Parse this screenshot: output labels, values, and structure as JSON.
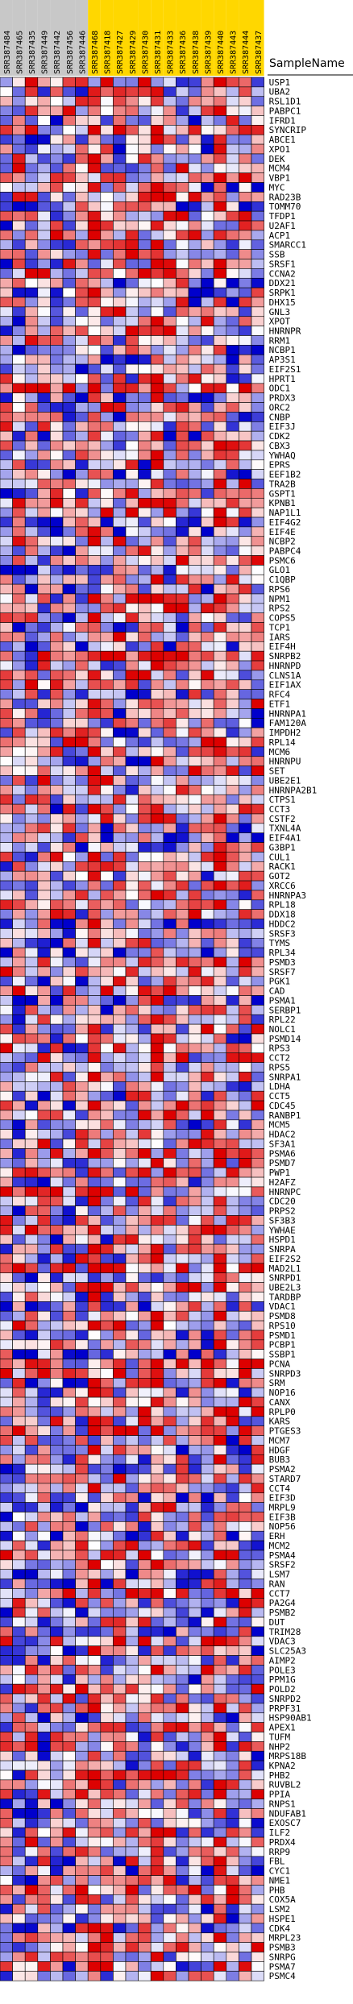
{
  "chart_data": {
    "type": "heatmap",
    "header_label": "SampleName",
    "columns": [
      {
        "id": "SRR387484",
        "group": "control"
      },
      {
        "id": "SRR387465",
        "group": "control"
      },
      {
        "id": "SRR387435",
        "group": "control"
      },
      {
        "id": "SRR387449",
        "group": "control"
      },
      {
        "id": "SRR387442",
        "group": "control"
      },
      {
        "id": "SRR387456",
        "group": "control"
      },
      {
        "id": "SRR387446",
        "group": "control"
      },
      {
        "id": "SRR387468",
        "group": "treated"
      },
      {
        "id": "SRR387418",
        "group": "treated"
      },
      {
        "id": "SRR387427",
        "group": "treated"
      },
      {
        "id": "SRR387429",
        "group": "treated"
      },
      {
        "id": "SRR387430",
        "group": "treated"
      },
      {
        "id": "SRR387431",
        "group": "treated"
      },
      {
        "id": "SRR387433",
        "group": "treated"
      },
      {
        "id": "SRR387436",
        "group": "treated"
      },
      {
        "id": "SRR387438",
        "group": "treated"
      },
      {
        "id": "SRR387439",
        "group": "treated"
      },
      {
        "id": "SRR387440",
        "group": "treated"
      },
      {
        "id": "SRR387443",
        "group": "treated"
      },
      {
        "id": "SRR387444",
        "group": "treated"
      },
      {
        "id": "SRR387437",
        "group": "treated"
      }
    ],
    "rows": [
      "USP1",
      "UBA2",
      "RSL1D1",
      "PABPC1",
      "IFRD1",
      "SYNCRIP",
      "ABCE1",
      "XPO1",
      "DEK",
      "MCM4",
      "VBP1",
      "MYC",
      "RAD23B",
      "TOMM70",
      "TFDP1",
      "U2AF1",
      "ACP1",
      "SMARCC1",
      "SSB",
      "SRSF1",
      "CCNA2",
      "DDX21",
      "SRPK1",
      "DHX15",
      "GNL3",
      "XPOT",
      "HNRNPR",
      "RRM1",
      "NCBP1",
      "AP3S1",
      "EIF2S1",
      "HPRT1",
      "ODC1",
      "PRDX3",
      "ORC2",
      "CNBP",
      "EIF3J",
      "CDK2",
      "CBX3",
      "YWHAQ",
      "EPRS",
      "EEF1B2",
      "TRA2B",
      "GSPT1",
      "KPNB1",
      "NAP1L1",
      "EIF4G2",
      "EIF4E",
      "NCBP2",
      "PABPC4",
      "PSMC6",
      "GLO1",
      "C1QBP",
      "RPS6",
      "NPM1",
      "RPS2",
      "COPS5",
      "TCP1",
      "IARS",
      "EIF4H",
      "SNRPB2",
      "HNRNPD",
      "CLNS1A",
      "EIF1AX",
      "RFC4",
      "ETF1",
      "HNRNPA1",
      "FAM120A",
      "IMPDH2",
      "RPL14",
      "MCM6",
      "HNRNPU",
      "SET",
      "UBE2E1",
      "HNRNPA2B1",
      "CTPS1",
      "CCT3",
      "CSTF2",
      "TXNL4A",
      "EIF4A1",
      "G3BP1",
      "CUL1",
      "RACK1",
      "GOT2",
      "XRCC6",
      "HNRNPA3",
      "RPL18",
      "DDX18",
      "HDDC2",
      "SRSF3",
      "TYMS",
      "RPL34",
      "PSMD3",
      "SRSF7",
      "PGK1",
      "CAD",
      "PSMA1",
      "SERBP1",
      "RPL22",
      "NOLC1",
      "PSMD14",
      "RPS3",
      "CCT2",
      "RPS5",
      "SNRPA1",
      "LDHA",
      "CCT5",
      "CDC45",
      "RANBP1",
      "MCM5",
      "HDAC2",
      "SF3A1",
      "PSMA6",
      "PSMD7",
      "PWP1",
      "H2AFZ",
      "HNRNPC",
      "CDC20",
      "PRPS2",
      "SF3B3",
      "YWHAE",
      "HSPD1",
      "SNRPA",
      "EIF2S2",
      "MAD2L1",
      "SNRPD1",
      "UBE2L3",
      "TARDBP",
      "VDAC1",
      "PSMD8",
      "RPS10",
      "PSMD1",
      "PCBP1",
      "SSBP1",
      "PCNA",
      "SNRPD3",
      "SRM",
      "NOP16",
      "CANX",
      "RPLP0",
      "KARS",
      "PTGES3",
      "MCM7",
      "HDGF",
      "BUB3",
      "PSMA2",
      "STARD7",
      "CCT4",
      "EIF3D",
      "MRPL9",
      "EIF3B",
      "NOP56",
      "ERH",
      "MCM2",
      "PSMA4",
      "SRSF2",
      "LSM7",
      "RAN",
      "CCT7",
      "PA2G4",
      "PSMB2",
      "DUT",
      "TRIM28",
      "VDAC3",
      "SLC25A3",
      "AIMP2",
      "POLE3",
      "PPM1G",
      "POLD2",
      "SNRPD2",
      "PRPF31",
      "HSP90AB1",
      "APEX1",
      "TUFM",
      "NHP2",
      "MRPS18B",
      "KPNA2",
      "PHB2",
      "RUVBL2",
      "PPIA",
      "RNPS1",
      "NDUFAB1",
      "EXOSC7",
      "ILF2",
      "PRDX4",
      "RRP9",
      "FBL",
      "CYC1",
      "NME1",
      "PHB",
      "COX5A",
      "LSM2",
      "HSPE1",
      "CDK4",
      "MRPL23",
      "PSMB3",
      "SNRPG",
      "PSMA7",
      "PSMC4"
    ],
    "scale": {
      "low": "#0000cc",
      "mid": "#ffffff",
      "high": "#dd0000"
    },
    "group_colors": {
      "control": "#c8c8c8",
      "treated": "#ffd700"
    },
    "seed": 7
  }
}
